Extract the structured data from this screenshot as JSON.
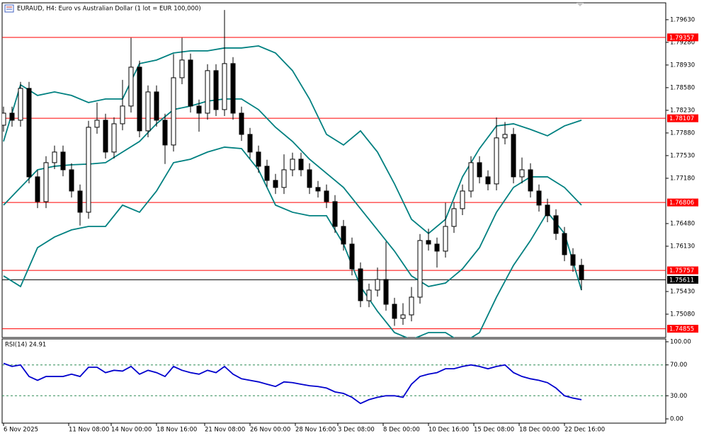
{
  "chart_data": [
    {
      "type": "candlestick",
      "title": "EURAUD, H4:  Euro vs Australian Dollar (1 lot = EUR 100,000)",
      "x": [
        0,
        3,
        6,
        9,
        12,
        15,
        18,
        21,
        24,
        27,
        30,
        33,
        36,
        39,
        42,
        45,
        48,
        51,
        54,
        57,
        60,
        63,
        66,
        69,
        72,
        75,
        78,
        81,
        84,
        87,
        90,
        93,
        96,
        99,
        102,
        105,
        108,
        111,
        114,
        117,
        120,
        123,
        126,
        129,
        132,
        135,
        138,
        141,
        144,
        147,
        150,
        153,
        156,
        159,
        162,
        165,
        168,
        171,
        174,
        177,
        180,
        183,
        186,
        189,
        192,
        195,
        198,
        201,
        204
      ],
      "open": [
        1.78,
        1.78186,
        1.78077,
        1.78569,
        1.77202,
        1.76819,
        1.77421,
        1.77585,
        1.77311,
        1.76983,
        1.76655,
        1.77968,
        1.78077,
        1.77585,
        1.78022,
        1.78296,
        1.78897,
        1.77913,
        1.78514,
        1.78077,
        1.77694,
        1.78733,
        1.79007,
        1.78296,
        1.78186,
        1.78843,
        1.78241,
        1.78952,
        1.78186,
        1.77858,
        1.77585,
        1.77366,
        1.77147,
        1.77038,
        1.77311,
        1.77475,
        1.77311,
        1.77038,
        1.76983,
        1.76819,
        1.76436,
        1.76163,
        1.7578,
        1.75288,
        1.75452,
        1.75616,
        1.75233,
        1.75015,
        1.75069,
        1.75343,
        1.76218,
        1.76163,
        1.76054,
        1.76436,
        1.7671,
        1.76983,
        1.77421,
        1.77202,
        1.77093,
        1.77804,
        1.77858,
        1.77202,
        1.77311,
        1.76983,
        1.76765,
        1.76601,
        1.76327,
        1.75999,
        1.75835
      ],
      "high": [
        1.78286,
        1.78286,
        1.78669,
        1.78669,
        1.77302,
        1.77521,
        1.77685,
        1.77685,
        1.77411,
        1.77083,
        1.78068,
        1.7835,
        1.78177,
        1.78122,
        1.787,
        1.7935,
        1.78997,
        1.78614,
        1.78614,
        1.78177,
        1.791,
        1.7935,
        1.79107,
        1.78396,
        1.78943,
        1.78943,
        1.7978,
        1.79052,
        1.78286,
        1.77958,
        1.77685,
        1.77466,
        1.77247,
        1.7755,
        1.77575,
        1.77575,
        1.77411,
        1.77138,
        1.77083,
        1.76919,
        1.76536,
        1.76263,
        1.7588,
        1.75552,
        1.758,
        1.762,
        1.75333,
        1.7525,
        1.755,
        1.76318,
        1.764,
        1.76263,
        1.768,
        1.7681,
        1.77083,
        1.77521,
        1.77521,
        1.77302,
        1.7812,
        1.7805,
        1.77958,
        1.775,
        1.77411,
        1.77083,
        1.76865,
        1.76701,
        1.76427,
        1.76099,
        1.75935
      ],
      "low": [
        1.779,
        1.77977,
        1.77977,
        1.77102,
        1.76719,
        1.76719,
        1.77321,
        1.77211,
        1.76883,
        1.7645,
        1.76555,
        1.77868,
        1.77485,
        1.77485,
        1.77922,
        1.78196,
        1.77813,
        1.77813,
        1.77977,
        1.774,
        1.77594,
        1.78633,
        1.78196,
        1.779,
        1.78086,
        1.78141,
        1.78141,
        1.78086,
        1.77758,
        1.77485,
        1.77266,
        1.77047,
        1.76938,
        1.76938,
        1.77211,
        1.77211,
        1.76938,
        1.76883,
        1.76719,
        1.76336,
        1.76063,
        1.7568,
        1.75188,
        1.75188,
        1.75352,
        1.75133,
        1.749,
        1.74915,
        1.74969,
        1.75243,
        1.76063,
        1.758,
        1.75954,
        1.76336,
        1.7661,
        1.76883,
        1.77102,
        1.76993,
        1.76993,
        1.77704,
        1.77102,
        1.77102,
        1.76883,
        1.76665,
        1.76501,
        1.76227,
        1.75899,
        1.75735,
        1.7545
      ],
      "close": [
        1.78186,
        1.78077,
        1.78569,
        1.77202,
        1.76819,
        1.77421,
        1.77585,
        1.77311,
        1.76983,
        1.76655,
        1.77968,
        1.78077,
        1.77585,
        1.78022,
        1.78296,
        1.78897,
        1.77913,
        1.78514,
        1.78077,
        1.77694,
        1.78733,
        1.79007,
        1.78296,
        1.78186,
        1.78843,
        1.78241,
        1.78952,
        1.78186,
        1.77858,
        1.77585,
        1.77366,
        1.77147,
        1.77038,
        1.77311,
        1.77475,
        1.77311,
        1.77038,
        1.76983,
        1.76819,
        1.76436,
        1.76163,
        1.7578,
        1.75288,
        1.75452,
        1.75616,
        1.75233,
        1.75015,
        1.75069,
        1.75343,
        1.76218,
        1.76163,
        1.76054,
        1.76436,
        1.7671,
        1.76983,
        1.77421,
        1.77202,
        1.77093,
        1.77804,
        1.77858,
        1.77202,
        1.77311,
        1.76983,
        1.76765,
        1.76601,
        1.76327,
        1.75999,
        1.75835,
        1.75611
      ],
      "color": "#000000",
      "bands": {
        "x": [
          0,
          6,
          12,
          18,
          24,
          30,
          36,
          42,
          48,
          54,
          60,
          66,
          72,
          78,
          84,
          90,
          96,
          102,
          108,
          114,
          120,
          126,
          132,
          138,
          144,
          150,
          156,
          162,
          168,
          174,
          180,
          186,
          192,
          198,
          204
        ],
        "color": "#008080",
        "series": [
          {
            "values": [
              1.77749,
              1.78624,
              1.7846,
              1.78514,
              1.7846,
              1.7835,
              1.78405,
              1.78405,
              1.78952,
              1.79007,
              1.79116,
              1.79149,
              1.79149,
              1.79193,
              1.79193,
              1.79225,
              1.79116,
              1.78843,
              1.78405,
              1.77858,
              1.77694,
              1.77913,
              1.77585,
              1.77093,
              1.76546,
              1.76327,
              1.76546,
              1.77202,
              1.77639,
              1.77989,
              1.78022,
              1.77935,
              1.77836,
              1.77989,
              1.78077
            ]
          },
          {
            "values": [
              1.76765,
              1.77038,
              1.77311,
              1.77366,
              1.77388,
              1.77399,
              1.77421,
              1.77585,
              1.77749,
              1.78022,
              1.78241,
              1.78296,
              1.78372,
              1.78405,
              1.78405,
              1.78241,
              1.77968,
              1.77749,
              1.77475,
              1.77257,
              1.77038,
              1.7671,
              1.76382,
              1.76054,
              1.75671,
              1.75507,
              1.75561,
              1.7578,
              1.76108,
              1.76655,
              1.77038,
              1.77202,
              1.77202,
              1.77038,
              1.76765
            ]
          },
          {
            "values": [
              1.75671,
              1.75507,
              1.76108,
              1.76272,
              1.76382,
              1.76436,
              1.76436,
              1.76765,
              1.76655,
              1.76983,
              1.77421,
              1.77475,
              1.77585,
              1.77661,
              1.77639,
              1.77311,
              1.76765,
              1.76655,
              1.76601,
              1.76601,
              1.76163,
              1.75507,
              1.75124,
              1.74796,
              1.74687,
              1.74796,
              1.74796,
              1.74632,
              1.74796,
              1.75343,
              1.75835,
              1.76218,
              1.76655,
              1.76327,
              1.75452
            ]
          }
        ]
      },
      "hlines": [
        {
          "value": 1.79357,
          "label": "1.79357",
          "color": "#ff0000"
        },
        {
          "value": 1.78107,
          "label": "1.78107",
          "color": "#ff0000"
        },
        {
          "value": 1.76806,
          "label": "1.76806",
          "color": "#ff0000"
        },
        {
          "value": 1.75757,
          "label": "1.75757",
          "color": "#ff0000"
        },
        {
          "value": 1.75611,
          "label": "1.75611",
          "color": "#000000"
        },
        {
          "value": 1.74855,
          "label": "1.74855",
          "color": "#ff0000"
        }
      ],
      "xlim": [
        -0.5,
        233.75
      ],
      "ylim": [
        1.7473,
        1.7988
      ],
      "yticks": [
        {
          "value": 1.7963,
          "label": "1.79630"
        },
        {
          "value": 1.7928,
          "label": "1.79280"
        },
        {
          "value": 1.7893,
          "label": "1.78930"
        },
        {
          "value": 1.7858,
          "label": "1.78580"
        },
        {
          "value": 1.7823,
          "label": "1.78230"
        },
        {
          "value": 1.7788,
          "label": "1.77880"
        },
        {
          "value": 1.7753,
          "label": "1.77530"
        },
        {
          "value": 1.7718,
          "label": "1.77180"
        },
        {
          "value": 1.7648,
          "label": "1.76480"
        },
        {
          "value": 1.7613,
          "label": "1.76130"
        },
        {
          "value": 1.7543,
          "label": "1.75430"
        },
        {
          "value": 1.7508,
          "label": "1.75080"
        }
      ]
    },
    {
      "type": "line",
      "label": "RSI(14) 24.91",
      "x": [
        0,
        3,
        6,
        9,
        12,
        15,
        18,
        21,
        24,
        27,
        30,
        33,
        36,
        39,
        42,
        45,
        48,
        51,
        54,
        57,
        60,
        63,
        66,
        69,
        72,
        75,
        78,
        81,
        84,
        87,
        90,
        93,
        96,
        99,
        102,
        105,
        108,
        111,
        114,
        117,
        120,
        123,
        126,
        129,
        132,
        135,
        138,
        141,
        144,
        147,
        150,
        153,
        156,
        159,
        162,
        165,
        168,
        171,
        174,
        177,
        180,
        183,
        186,
        189,
        192,
        195,
        198,
        201,
        204
      ],
      "values": [
        72,
        68,
        70,
        55,
        50,
        55,
        55,
        55,
        58,
        55,
        67,
        67,
        60,
        63,
        62,
        68,
        58,
        63,
        60,
        55,
        68,
        63,
        60,
        58,
        63,
        60,
        68,
        58,
        52,
        50,
        48,
        45,
        42,
        48,
        47,
        45,
        43,
        42,
        40,
        35,
        33,
        28,
        20,
        25,
        28,
        30,
        30,
        28,
        45,
        55,
        58,
        60,
        65,
        65,
        68,
        70,
        68,
        65,
        68,
        70,
        60,
        55,
        52,
        50,
        47,
        40,
        30,
        27,
        24.91
      ],
      "color": "#0000cd",
      "levels": [
        70,
        30
      ],
      "xlim": [
        -0.5,
        233.75
      ],
      "ylim": [
        0,
        100
      ],
      "yticks": [
        {
          "value": 100,
          "label": "100.00"
        },
        {
          "value": 70,
          "label": "70.00"
        },
        {
          "value": 30,
          "label": "30.00"
        },
        {
          "value": 0,
          "label": "0.00"
        }
      ],
      "xticks": [
        {
          "value": 0,
          "label": "6 Nov 2025"
        },
        {
          "value": 23,
          "label": "11 Nov 08:00"
        },
        {
          "value": 38,
          "label": "14 Nov 00:00"
        },
        {
          "value": 54,
          "label": "18 Nov 16:00"
        },
        {
          "value": 71,
          "label": "21 Nov 08:00"
        },
        {
          "value": 87,
          "label": "26 Nov 00:00"
        },
        {
          "value": 103,
          "label": "28 Nov 16:00"
        },
        {
          "value": 118,
          "label": "3 Dec 08:00"
        },
        {
          "value": 134,
          "label": "8 Dec 00:00"
        },
        {
          "value": 150,
          "label": "10 Dec 16:00"
        },
        {
          "value": 166,
          "label": "15 Dec 08:00"
        },
        {
          "value": 182,
          "label": "18 Dec 00:00"
        },
        {
          "value": 198,
          "label": "22 Dec 16:00"
        }
      ]
    }
  ]
}
